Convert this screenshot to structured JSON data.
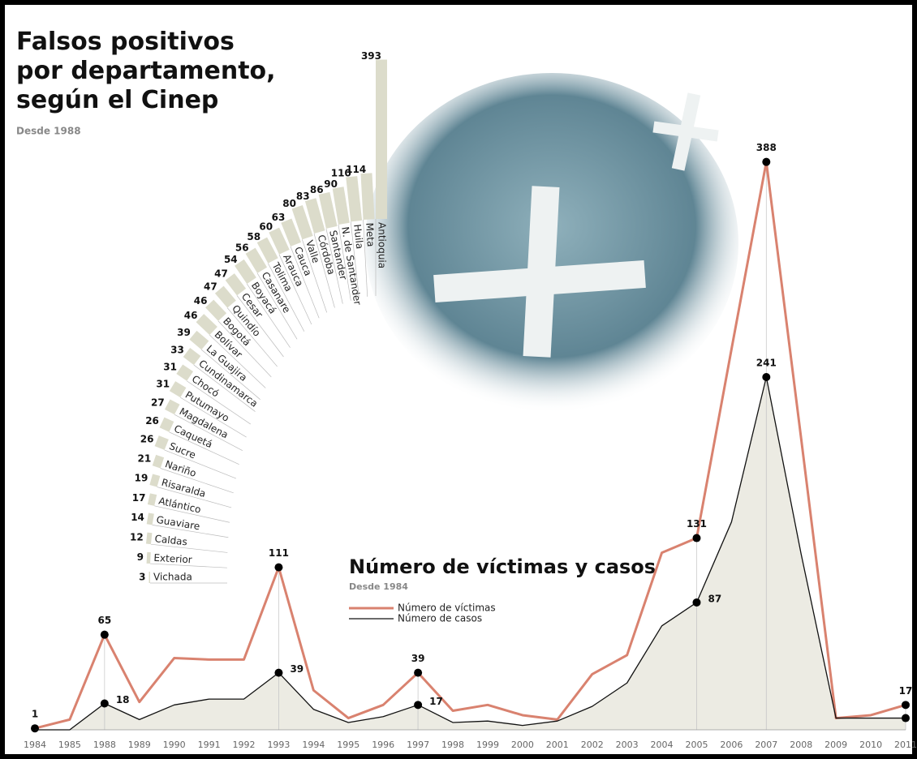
{
  "chart_data": [
    {
      "type": "radial-bar",
      "title": "Falsos positivos por departamento, según el Cinep",
      "subtitle": "Desde 1988",
      "categories": [
        "Vichada",
        "Exterior",
        "Caldas",
        "Guaviare",
        "Atlántico",
        "Risaralda",
        "Nariño",
        "Sucre",
        "Caquetá",
        "Magdalena",
        "Putumayo",
        "Chocó",
        "Cundinamarca",
        "La Guajira",
        "Bolívar",
        "Bogotá",
        "Quindío",
        "Cesar",
        "Boyacá",
        "Casanare",
        "Tolima",
        "Arauca",
        "Cauca",
        "Valle",
        "Córdoba",
        "Santander",
        "N. de Santander",
        "Huila",
        "Meta",
        "Antioquia"
      ],
      "values": [
        3,
        9,
        12,
        14,
        17,
        19,
        21,
        26,
        26,
        27,
        31,
        31,
        33,
        39,
        46,
        46,
        47,
        47,
        54,
        56,
        58,
        60,
        63,
        80,
        83,
        86,
        90,
        110,
        114,
        393
      ],
      "color": "#dcdccb"
    },
    {
      "type": "line",
      "title": "Número de víctimas y casos",
      "subtitle": "Desde 1984",
      "categories": [
        "1984",
        "1985",
        "1988",
        "1989",
        "1990",
        "1991",
        "1992",
        "1993",
        "1994",
        "1995",
        "1996",
        "1997",
        "1998",
        "1999",
        "2000",
        "2001",
        "2002",
        "2003",
        "2004",
        "2005",
        "2006",
        "2007",
        "2008",
        "2009",
        "2010",
        "2011"
      ],
      "ylim": [
        0,
        400
      ],
      "series": [
        {
          "name": "Número de víctimas",
          "color": "#d9826f",
          "values": [
            1,
            7,
            65,
            19,
            49,
            48,
            48,
            111,
            27,
            8,
            17,
            39,
            13,
            17,
            10,
            7,
            38,
            51,
            121,
            131,
            260,
            388,
            199,
            8,
            10,
            17
          ],
          "value_labels": [
            "1",
            null,
            "65",
            null,
            null,
            null,
            null,
            "111",
            null,
            null,
            null,
            "39",
            null,
            null,
            null,
            null,
            null,
            null,
            null,
            "131",
            null,
            "388",
            null,
            null,
            null,
            "17"
          ]
        },
        {
          "name": "Número de casos",
          "color": "#111111",
          "area": "#ecebe3",
          "values": [
            0,
            0,
            18,
            7,
            17,
            21,
            21,
            39,
            14,
            5,
            9,
            17,
            5,
            6,
            3,
            6,
            16,
            32,
            71,
            87,
            142,
            241,
            120,
            8,
            8,
            8
          ],
          "value_labels": [
            null,
            null,
            "18",
            null,
            null,
            null,
            null,
            "39",
            null,
            null,
            null,
            "17",
            null,
            null,
            null,
            null,
            null,
            null,
            null,
            "87",
            null,
            "241",
            null,
            null,
            null,
            "8"
          ]
        }
      ]
    }
  ]
}
